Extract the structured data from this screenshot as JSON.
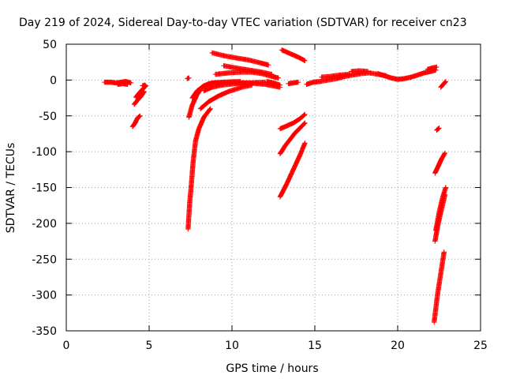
{
  "colors": {
    "series": "#ff0000",
    "grid": "#a0a0a0",
    "axis": "#000000",
    "background": "#ffffff"
  },
  "chart_data": {
    "type": "scatter",
    "title": "Day 219 of 2024, Sidereal Day-to-day VTEC variation (SDTVAR) for receiver cn23",
    "xlabel": "GPS time / hours",
    "ylabel": "SDTVAR / TECUs",
    "xlim": [
      0,
      25
    ],
    "ylim": [
      -350,
      50
    ],
    "xticks": [
      0,
      5,
      10,
      15,
      20,
      25
    ],
    "yticks": [
      50,
      0,
      -50,
      -100,
      -150,
      -200,
      -250,
      -300,
      -350
    ],
    "grid": true,
    "legend": "none",
    "marker": "plus",
    "series": [
      {
        "segments": [
          [
            [
              2.3,
              -3
            ],
            [
              2.7,
              -3
            ],
            [
              3.0,
              -4
            ],
            [
              3.3,
              -3
            ],
            [
              3.6,
              -2
            ],
            [
              3.9,
              -4
            ]
          ],
          [
            [
              3.1,
              -6
            ],
            [
              3.4,
              -5
            ],
            [
              3.7,
              -6
            ]
          ],
          [
            [
              4.1,
              -34
            ],
            [
              4.3,
              -28
            ],
            [
              4.5,
              -23
            ],
            [
              4.7,
              -16
            ]
          ],
          [
            [
              4.2,
              -24
            ],
            [
              4.4,
              -18
            ],
            [
              4.6,
              -13
            ],
            [
              4.8,
              -8
            ]
          ],
          [
            [
              4.6,
              -8
            ],
            [
              4.75,
              -7
            ]
          ],
          [
            [
              4.0,
              -65
            ],
            [
              4.15,
              -60
            ],
            [
              4.3,
              -53
            ],
            [
              4.45,
              -50
            ]
          ],
          [
            [
              7.3,
              2
            ],
            [
              7.4,
              3
            ]
          ],
          [
            [
              7.35,
              -208
            ],
            [
              7.45,
              -170
            ],
            [
              7.55,
              -145
            ],
            [
              7.65,
              -115
            ],
            [
              7.8,
              -85
            ],
            [
              8.0,
              -68
            ],
            [
              8.3,
              -52
            ],
            [
              8.7,
              -40
            ]
          ],
          [
            [
              7.4,
              -52
            ],
            [
              7.6,
              -35
            ],
            [
              7.9,
              -20
            ],
            [
              8.2,
              -10
            ],
            [
              8.6,
              -5
            ],
            [
              9.0,
              -4
            ]
          ],
          [
            [
              7.6,
              -25
            ],
            [
              7.9,
              -15
            ],
            [
              8.3,
              -8
            ],
            [
              8.8,
              -4
            ],
            [
              9.5,
              -3
            ],
            [
              10.5,
              -2
            ]
          ],
          [
            [
              8.1,
              -40
            ],
            [
              8.6,
              -30
            ],
            [
              9.2,
              -22
            ],
            [
              9.8,
              -16
            ],
            [
              10.6,
              -10
            ],
            [
              11.2,
              -7
            ]
          ],
          [
            [
              8.3,
              -15
            ],
            [
              8.8,
              -10
            ],
            [
              9.4,
              -7
            ],
            [
              10.2,
              -5
            ],
            [
              11.0,
              -4
            ],
            [
              12.0,
              -3
            ]
          ],
          [
            [
              8.8,
              38
            ],
            [
              9.5,
              34
            ],
            [
              10.2,
              31
            ],
            [
              11.0,
              28
            ],
            [
              11.7,
              24
            ],
            [
              12.2,
              21
            ]
          ],
          [
            [
              9.0,
              8
            ],
            [
              9.8,
              10
            ],
            [
              10.5,
              11
            ],
            [
              11.2,
              11
            ],
            [
              11.8,
              9
            ],
            [
              12.4,
              5
            ],
            [
              12.8,
              3
            ]
          ],
          [
            [
              9.5,
              20
            ],
            [
              10.2,
              17
            ],
            [
              11.0,
              14
            ],
            [
              11.8,
              11
            ],
            [
              12.4,
              8
            ]
          ],
          [
            [
              9.0,
              -4
            ],
            [
              10.0,
              -3
            ],
            [
              11.0,
              -4
            ],
            [
              12.0,
              -6
            ],
            [
              12.9,
              -10
            ]
          ],
          [
            [
              12.1,
              -2
            ],
            [
              12.5,
              -4
            ],
            [
              12.9,
              -7
            ]
          ],
          [
            [
              13.0,
              42
            ],
            [
              13.5,
              37
            ],
            [
              14.0,
              32
            ],
            [
              14.4,
              27
            ]
          ],
          [
            [
              12.9,
              -68
            ],
            [
              13.3,
              -64
            ],
            [
              13.7,
              -60
            ],
            [
              14.1,
              -54
            ],
            [
              14.4,
              -48
            ]
          ],
          [
            [
              12.9,
              -103
            ],
            [
              13.2,
              -92
            ],
            [
              13.5,
              -83
            ],
            [
              13.8,
              -74
            ],
            [
              14.1,
              -67
            ],
            [
              14.4,
              -60
            ]
          ],
          [
            [
              12.9,
              -163
            ],
            [
              13.3,
              -145
            ],
            [
              13.7,
              -125
            ],
            [
              14.1,
              -105
            ],
            [
              14.4,
              -88
            ]
          ],
          [
            [
              13.4,
              -5
            ],
            [
              13.7,
              -4
            ],
            [
              14.0,
              -3
            ]
          ],
          [
            [
              14.5,
              -6
            ],
            [
              14.9,
              -3
            ],
            [
              15.3,
              -2
            ],
            [
              15.8,
              0
            ],
            [
              16.3,
              2
            ],
            [
              16.8,
              5
            ],
            [
              17.3,
              7
            ],
            [
              17.8,
              9
            ],
            [
              18.3,
              10
            ],
            [
              18.8,
              8
            ],
            [
              19.3,
              6
            ]
          ],
          [
            [
              15.4,
              4
            ],
            [
              15.9,
              5
            ],
            [
              16.5,
              7
            ],
            [
              17.1,
              8
            ]
          ],
          [
            [
              17.2,
              12
            ],
            [
              17.7,
              13
            ],
            [
              18.2,
              12
            ]
          ],
          [
            [
              18.8,
              9
            ],
            [
              19.2,
              6
            ],
            [
              19.6,
              3
            ],
            [
              20.0,
              1
            ],
            [
              20.4,
              2
            ],
            [
              20.8,
              4
            ],
            [
              21.2,
              7
            ],
            [
              21.6,
              10
            ],
            [
              22.0,
              12
            ],
            [
              22.3,
              14
            ]
          ],
          [
            [
              21.8,
              15
            ],
            [
              22.1,
              17
            ],
            [
              22.35,
              18
            ]
          ],
          [
            [
              22.2,
              -338
            ],
            [
              22.4,
              -300
            ],
            [
              22.6,
              -270
            ],
            [
              22.8,
              -240
            ]
          ],
          [
            [
              22.25,
              -225
            ],
            [
              22.45,
              -200
            ],
            [
              22.65,
              -180
            ],
            [
              22.85,
              -160
            ]
          ],
          [
            [
              22.3,
              -210
            ],
            [
              22.5,
              -185
            ],
            [
              22.7,
              -165
            ],
            [
              22.9,
              -150
            ]
          ],
          [
            [
              22.25,
              -130
            ],
            [
              22.45,
              -120
            ],
            [
              22.65,
              -110
            ],
            [
              22.85,
              -102
            ]
          ],
          [
            [
              22.35,
              -70
            ],
            [
              22.5,
              -67
            ]
          ],
          [
            [
              22.6,
              -10
            ],
            [
              22.75,
              -6
            ],
            [
              22.9,
              -2
            ]
          ]
        ]
      }
    ]
  }
}
